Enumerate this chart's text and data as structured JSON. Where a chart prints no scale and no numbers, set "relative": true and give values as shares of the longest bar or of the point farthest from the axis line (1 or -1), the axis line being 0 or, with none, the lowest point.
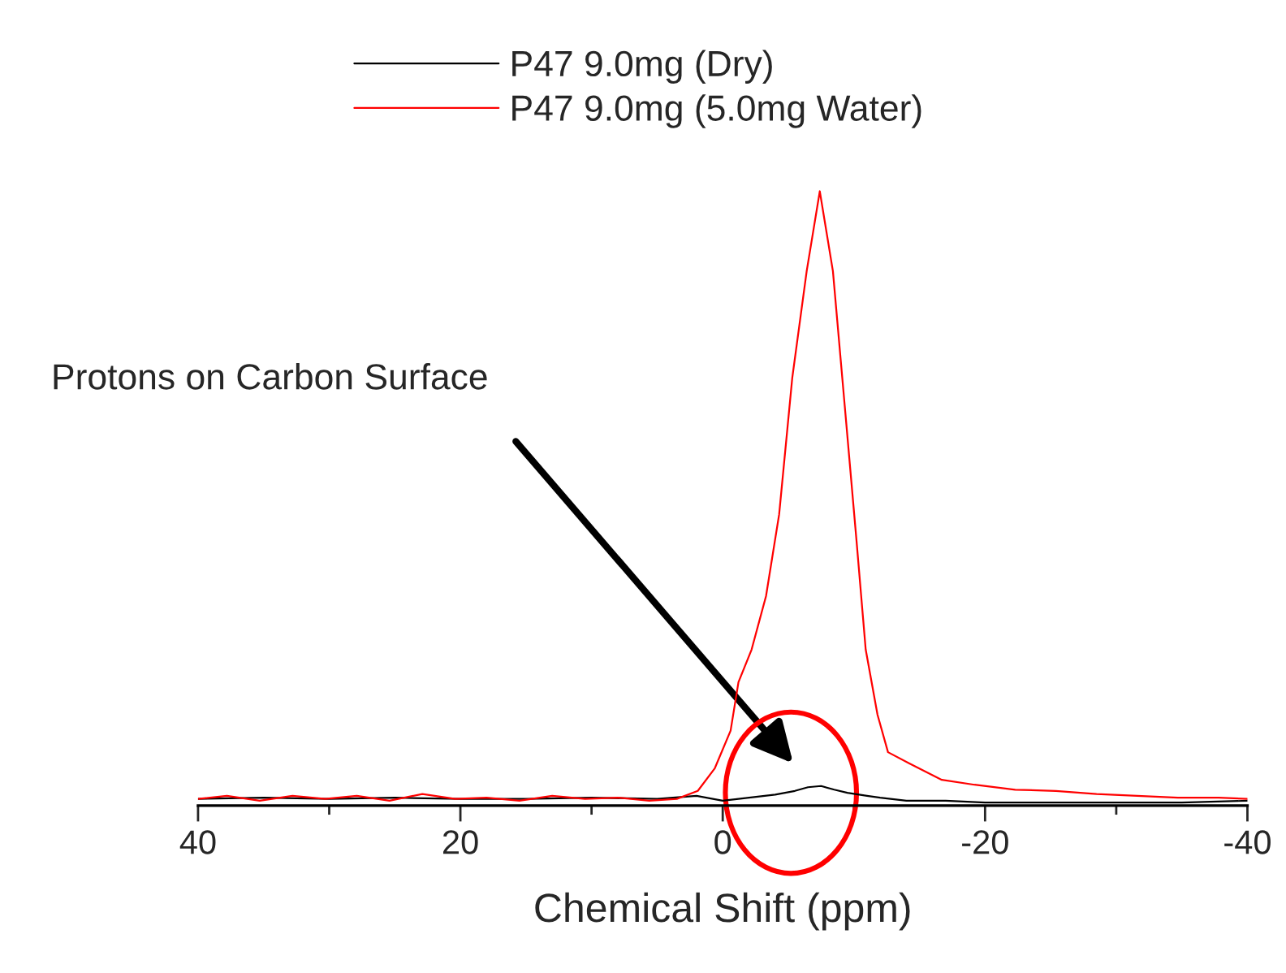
{
  "chart_data": {
    "type": "line",
    "relative": true,
    "xlabel": "Chemical Shift (ppm)",
    "xlim": [
      40,
      -40
    ],
    "xticks": [
      40,
      {
        "value": 30,
        "label": null
      },
      20,
      {
        "value": 10,
        "label": null
      },
      0,
      {
        "value": -10,
        "label": null
      },
      -20,
      {
        "value": -30,
        "label": null
      },
      -40
    ],
    "tick_labels": "x",
    "legend": "top",
    "grid": false,
    "marker": "none",
    "line_style": "solid",
    "annotations": [
      "Protons on Carbon Surface"
    ],
    "series": [
      {
        "name": "P47 9.0mg (Dry)",
        "color": "#000000",
        "x": [
          40,
          35,
          30,
          25,
          20,
          15,
          10,
          5,
          2,
          0,
          -2,
          -4,
          -5.5,
          -6.5,
          -7.5,
          -8.5,
          -9.5,
          -11,
          -12,
          -14,
          -17,
          -20,
          -25,
          -30,
          -35,
          -40
        ],
        "values": [
          0.011,
          0.013,
          0.011,
          0.013,
          0.011,
          0.011,
          0.013,
          0.011,
          0.016,
          0.008,
          0.013,
          0.018,
          0.024,
          0.03,
          0.032,
          0.026,
          0.021,
          0.016,
          0.013,
          0.008,
          0.008,
          0.005,
          0.005,
          0.005,
          0.005,
          0.008
        ]
      },
      {
        "name": "P47 9.0mg (5.0mg Water)",
        "color": "#ff0000",
        "x": [
          40,
          37.8,
          35.3,
          32.8,
          30.3,
          27.9,
          25.4,
          22.9,
          20.4,
          18.0,
          15.5,
          13.0,
          10.5,
          8.0,
          5.6,
          3.5,
          1.9,
          0.6,
          -0.6,
          -1.2,
          -2.2,
          -3.3,
          -4.3,
          -5.3,
          -6.4,
          -7.4,
          -8.4,
          -9.3,
          -10.2,
          -10.9,
          -11.8,
          -12.6,
          -14.2,
          -16.7,
          -19.2,
          -22.3,
          -25.4,
          -28.5,
          -31.6,
          -34.7,
          -37.8,
          -40
        ],
        "values": [
          0.011,
          0.016,
          0.008,
          0.016,
          0.011,
          0.016,
          0.008,
          0.019,
          0.011,
          0.013,
          0.008,
          0.016,
          0.011,
          0.013,
          0.008,
          0.011,
          0.024,
          0.061,
          0.122,
          0.201,
          0.254,
          0.341,
          0.474,
          0.696,
          0.87,
          1,
          0.87,
          0.651,
          0.431,
          0.254,
          0.148,
          0.087,
          0.069,
          0.042,
          0.034,
          0.026,
          0.024,
          0.019,
          0.016,
          0.013,
          0.013,
          0.011
        ]
      }
    ]
  }
}
